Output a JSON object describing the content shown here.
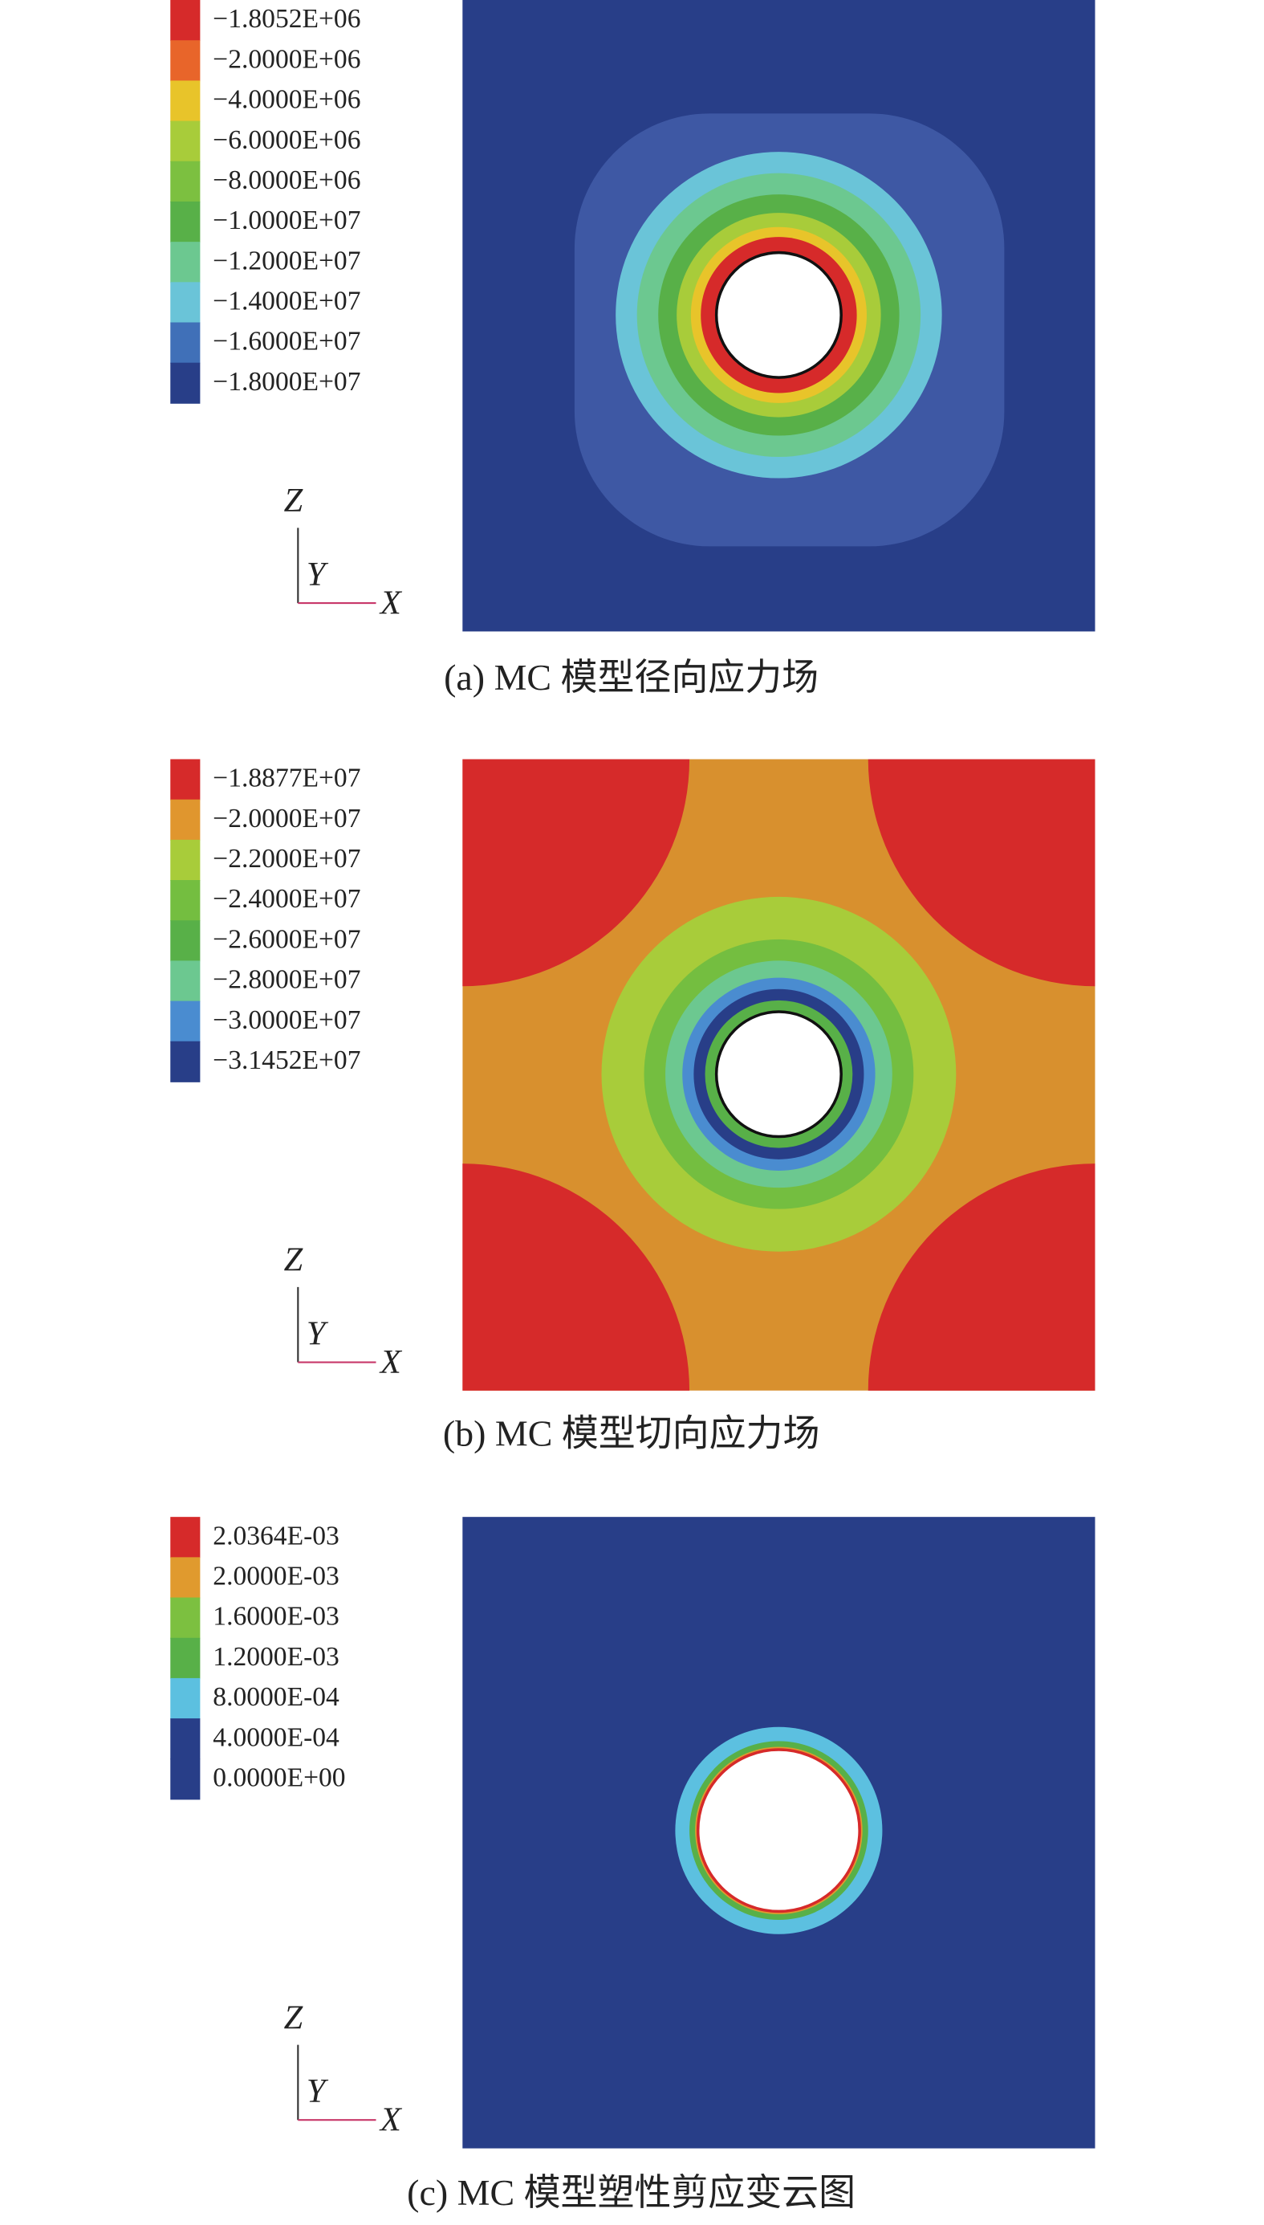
{
  "panels": [
    {
      "legend": {
        "labels": [
          "−1.8052E+06",
          "−2.0000E+06",
          "−4.0000E+06",
          "−6.0000E+06",
          "−8.0000E+06",
          "−1.0000E+07",
          "−1.2000E+07",
          "−1.4000E+07",
          "−1.6000E+07",
          "−1.8000E+07"
        ],
        "colors": [
          "#d62a2a",
          "#e8652a",
          "#e8c42a",
          "#a8cc3a",
          "#7cc040",
          "#58b048",
          "#6cc890",
          "#6ac4d8",
          "#4070b8",
          "#283e88"
        ]
      },
      "axes": {
        "z": "Z",
        "y": "Y",
        "x": "X"
      },
      "caption": "(a) MC 模型径向应力场"
    },
    {
      "legend": {
        "labels": [
          "−1.8877E+07",
          "−2.0000E+07",
          "−2.2000E+07",
          "−2.4000E+07",
          "−2.6000E+07",
          "−2.8000E+07",
          "−3.0000E+07",
          "−3.1452E+07"
        ],
        "colors": [
          "#d62a2a",
          "#e0962e",
          "#a8cc3a",
          "#74be40",
          "#58b048",
          "#6cc890",
          "#4a8cd0",
          "#283e88"
        ]
      },
      "axes": {
        "z": "Z",
        "y": "Y",
        "x": "X"
      },
      "caption": "(b) MC 模型切向应力场"
    },
    {
      "legend": {
        "labels": [
          "2.0364E-03",
          "2.0000E-03",
          "1.6000E-03",
          "1.2000E-03",
          "8.0000E-04",
          "4.0000E-04",
          "0.0000E+00"
        ],
        "colors": [
          "#d62a2a",
          "#e09a2e",
          "#7cc040",
          "#58b048",
          "#5cc0e0",
          "#283e88",
          "#283e88"
        ]
      },
      "axes": {
        "z": "Z",
        "y": "Y",
        "x": "X"
      },
      "caption": "(c) MC 模型塑性剪应变云图"
    }
  ]
}
